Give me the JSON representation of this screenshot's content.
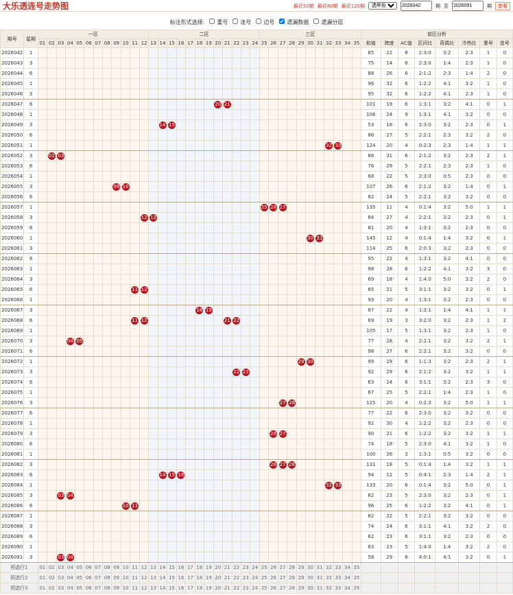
{
  "header": {
    "title": "大乐透连号走势图",
    "links": [
      "最近50期",
      "最近80期",
      "最近120期"
    ],
    "year_select": "选年份",
    "from": "2026042",
    "from_unit": "期",
    "to_label": "至",
    "to": "2026091",
    "to_unit": "期",
    "button": "查看"
  },
  "filter": {
    "label": "标注形式选择:",
    "options": [
      {
        "label": "重号",
        "checked": false
      },
      {
        "label": "连号",
        "checked": false
      },
      {
        "label": "边号",
        "checked": false
      },
      {
        "label": "遗漏数据",
        "checked": true
      },
      {
        "label": "遗漏分层",
        "checked": false
      }
    ]
  },
  "table": {
    "period_header": "期号",
    "week_header": "星期",
    "zones": [
      {
        "name": "一区",
        "count": 12
      },
      {
        "name": "二区",
        "count": 12
      },
      {
        "name": "三区",
        "count": 11
      }
    ],
    "analysis_title": "前区分析",
    "numbers": [
      "01",
      "02",
      "03",
      "04",
      "05",
      "06",
      "07",
      "08",
      "09",
      "10",
      "11",
      "12",
      "13",
      "14",
      "15",
      "16",
      "17",
      "18",
      "19",
      "20",
      "21",
      "22",
      "23",
      "24",
      "25",
      "26",
      "27",
      "28",
      "29",
      "30",
      "31",
      "32",
      "33",
      "34",
      "35"
    ],
    "analysis_headers": [
      "和值",
      "跨度",
      "AC值",
      "区间比",
      "奇偶比",
      "冷热比",
      "重号",
      "连号"
    ],
    "rows": [
      {
        "period": "2026042",
        "week": 1,
        "consecutive": [],
        "analysis": [
          65,
          22,
          8,
          "2:3:0",
          "3:2",
          "2:3",
          1,
          0
        ]
      },
      {
        "period": "2026043",
        "week": 3,
        "consecutive": [],
        "analysis": [
          75,
          14,
          6,
          "2:3:0",
          "1:4",
          "2:3",
          1,
          0
        ]
      },
      {
        "period": "2026044",
        "week": 6,
        "consecutive": [],
        "analysis": [
          88,
          26,
          6,
          "2:1:2",
          "2:3",
          "1:4",
          2,
          0
        ]
      },
      {
        "period": "2026045",
        "week": 1,
        "consecutive": [],
        "analysis": [
          96,
          32,
          6,
          "1:2:2",
          "4:1",
          "3:2",
          1,
          0
        ]
      },
      {
        "period": "2026046",
        "week": 3,
        "consecutive": [],
        "analysis": [
          95,
          32,
          6,
          "1:2:2",
          "4:1",
          "2:3",
          1,
          0
        ]
      },
      {
        "period": "2026047",
        "week": 6,
        "consecutive": [
          "20",
          "21"
        ],
        "analysis": [
          101,
          19,
          6,
          "1:3:1",
          "3:2",
          "4:1",
          0,
          1
        ]
      },
      {
        "period": "2026048",
        "week": 1,
        "consecutive": [],
        "analysis": [
          106,
          24,
          9,
          "1:3:1",
          "4:1",
          "3:2",
          0,
          0
        ]
      },
      {
        "period": "2026049",
        "week": 3,
        "consecutive": [
          "14",
          "15"
        ],
        "analysis": [
          53,
          16,
          6,
          "2:3:0",
          "3:2",
          "2:3",
          0,
          1
        ]
      },
      {
        "period": "2026050",
        "week": 6,
        "consecutive": [],
        "analysis": [
          86,
          27,
          5,
          "2:2:1",
          "2:3",
          "3:2",
          2,
          0
        ]
      },
      {
        "period": "2026051",
        "week": 1,
        "consecutive": [
          "32",
          "33"
        ],
        "analysis": [
          124,
          20,
          4,
          "0:2:3",
          "2:3",
          "1:4",
          1,
          1
        ]
      },
      {
        "period": "2026052",
        "week": 3,
        "consecutive": [
          "02",
          "03"
        ],
        "analysis": [
          86,
          31,
          6,
          "2:1:2",
          "3:2",
          "2:3",
          2,
          1
        ]
      },
      {
        "period": "2026053",
        "week": 6,
        "consecutive": [],
        "analysis": [
          76,
          29,
          5,
          "2:2:1",
          "2:3",
          "2:3",
          1,
          0
        ]
      },
      {
        "period": "2026054",
        "week": 1,
        "consecutive": [],
        "analysis": [
          68,
          22,
          5,
          "2:3:0",
          "0:5",
          "2:3",
          0,
          0
        ]
      },
      {
        "period": "2026055",
        "week": 3,
        "consecutive": [
          "09",
          "10"
        ],
        "analysis": [
          107,
          26,
          6,
          "2:1:2",
          "3:2",
          "1:4",
          0,
          1
        ]
      },
      {
        "period": "2026056",
        "week": 6,
        "consecutive": [],
        "analysis": [
          82,
          24,
          5,
          "2:2:1",
          "3:2",
          "3:2",
          0,
          0
        ]
      },
      {
        "period": "2026057",
        "week": 1,
        "consecutive": [
          "25",
          "26",
          "27"
        ],
        "analysis": [
          135,
          11,
          4,
          "0:1:4",
          "3:2",
          "5:0",
          1,
          1
        ]
      },
      {
        "period": "2026058",
        "week": 3,
        "consecutive": [
          "12",
          "13"
        ],
        "analysis": [
          84,
          27,
          4,
          "2:2:1",
          "3:2",
          "2:3",
          0,
          1
        ]
      },
      {
        "period": "2026059",
        "week": 6,
        "consecutive": [],
        "analysis": [
          81,
          20,
          4,
          "1:3:1",
          "3:2",
          "2:3",
          0,
          0
        ]
      },
      {
        "period": "2026060",
        "week": 1,
        "consecutive": [
          "30",
          "31"
        ],
        "analysis": [
          145,
          12,
          4,
          "0:1:4",
          "1:4",
          "3:2",
          0,
          1
        ]
      },
      {
        "period": "2026061",
        "week": 3,
        "consecutive": [],
        "analysis": [
          114,
          25,
          6,
          "2:0:3",
          "3:2",
          "2:3",
          0,
          0
        ]
      },
      {
        "period": "2026062",
        "week": 6,
        "consecutive": [],
        "analysis": [
          95,
          22,
          4,
          "1:3:1",
          "3:2",
          "4:1",
          0,
          0
        ]
      },
      {
        "period": "2026063",
        "week": 1,
        "consecutive": [],
        "analysis": [
          98,
          28,
          6,
          "1:2:2",
          "4:1",
          "3:2",
          3,
          0
        ]
      },
      {
        "period": "2026064",
        "week": 3,
        "consecutive": [],
        "analysis": [
          69,
          18,
          4,
          "1:4:0",
          "5:0",
          "3:2",
          2,
          0
        ]
      },
      {
        "period": "2026065",
        "week": 6,
        "consecutive": [
          "11",
          "12"
        ],
        "analysis": [
          65,
          21,
          5,
          "3:1:1",
          "3:2",
          "3:2",
          0,
          1
        ]
      },
      {
        "period": "2026066",
        "week": 1,
        "consecutive": [],
        "analysis": [
          93,
          20,
          4,
          "1:3:1",
          "3:2",
          "2:3",
          0,
          0
        ]
      },
      {
        "period": "2026067",
        "week": 3,
        "consecutive": [
          "18",
          "19"
        ],
        "analysis": [
          87,
          22,
          4,
          "1:3:1",
          "1:4",
          "4:1",
          1,
          1
        ]
      },
      {
        "period": "2026068",
        "week": 6,
        "consecutive": [
          "11",
          "12",
          "21",
          "22"
        ],
        "analysis": [
          69,
          19,
          3,
          "3:2:0",
          "3:2",
          "2:3",
          1,
          2
        ]
      },
      {
        "period": "2026069",
        "week": 1,
        "consecutive": [],
        "analysis": [
          105,
          17,
          5,
          "1:3:1",
          "3:2",
          "2:3",
          1,
          0
        ]
      },
      {
        "period": "2026070",
        "week": 3,
        "consecutive": [
          "04",
          "05"
        ],
        "analysis": [
          77,
          28,
          4,
          "2:2:1",
          "3:2",
          "3:2",
          2,
          1
        ]
      },
      {
        "period": "2026071",
        "week": 6,
        "consecutive": [],
        "analysis": [
          98,
          27,
          6,
          "2:2:1",
          "3:2",
          "3:2",
          0,
          0
        ]
      },
      {
        "period": "2026072",
        "week": 1,
        "consecutive": [
          "29",
          "30"
        ],
        "analysis": [
          99,
          29,
          6,
          "1:1:3",
          "3:2",
          "2:3",
          2,
          1
        ]
      },
      {
        "period": "2026073",
        "week": 3,
        "consecutive": [
          "22",
          "23"
        ],
        "analysis": [
          92,
          29,
          6,
          "2:1:2",
          "3:2",
          "3:2",
          1,
          1
        ]
      },
      {
        "period": "2026074",
        "week": 6,
        "consecutive": [],
        "analysis": [
          63,
          24,
          6,
          "3:1:1",
          "3:2",
          "2:3",
          3,
          0
        ]
      },
      {
        "period": "2026075",
        "week": 1,
        "consecutive": [],
        "analysis": [
          67,
          25,
          5,
          "2:2:1",
          "1:4",
          "2:3",
          1,
          0
        ]
      },
      {
        "period": "2026076",
        "week": 3,
        "consecutive": [
          "27",
          "28"
        ],
        "analysis": [
          125,
          20,
          4,
          "0:2:3",
          "3:2",
          "5:0",
          1,
          1
        ]
      },
      {
        "period": "2026077",
        "week": 6,
        "consecutive": [],
        "analysis": [
          77,
          22,
          6,
          "2:3:0",
          "3:2",
          "3:2",
          0,
          0
        ]
      },
      {
        "period": "2026078",
        "week": 1,
        "consecutive": [],
        "analysis": [
          92,
          30,
          4,
          "1:2:2",
          "3:2",
          "2:3",
          0,
          0
        ]
      },
      {
        "period": "2026079",
        "week": 3,
        "consecutive": [
          "26",
          "27"
        ],
        "analysis": [
          90,
          21,
          6,
          "1:2:2",
          "3:2",
          "3:2",
          1,
          1
        ]
      },
      {
        "period": "2026080",
        "week": 6,
        "consecutive": [],
        "analysis": [
          74,
          18,
          5,
          "2:3:0",
          "4:1",
          "3:2",
          1,
          0
        ]
      },
      {
        "period": "2026081",
        "week": 1,
        "consecutive": [],
        "analysis": [
          100,
          26,
          3,
          "1:3:1",
          "0:5",
          "3:2",
          0,
          0
        ]
      },
      {
        "period": "2026082",
        "week": 3,
        "consecutive": [
          "26",
          "27",
          "28"
        ],
        "analysis": [
          131,
          18,
          5,
          "0:1:4",
          "1:4",
          "3:2",
          1,
          1
        ]
      },
      {
        "period": "2026083",
        "week": 6,
        "consecutive": [
          "14",
          "15",
          "16"
        ],
        "analysis": [
          94,
          12,
          5,
          "0:4:1",
          "2:3",
          "1:4",
          2,
          1
        ]
      },
      {
        "period": "2026084",
        "week": 1,
        "consecutive": [
          "32",
          "33"
        ],
        "analysis": [
          133,
          20,
          6,
          "0:1:4",
          "3:2",
          "5:0",
          0,
          1
        ]
      },
      {
        "period": "2026085",
        "week": 3,
        "consecutive": [
          "03",
          "04"
        ],
        "analysis": [
          62,
          23,
          5,
          "2:3:0",
          "3:2",
          "2:3",
          0,
          1
        ]
      },
      {
        "period": "2026086",
        "week": 6,
        "consecutive": [
          "10",
          "11"
        ],
        "analysis": [
          96,
          25,
          6,
          "1:2:2",
          "3:2",
          "4:1",
          0,
          1
        ]
      },
      {
        "period": "2026087",
        "week": 1,
        "consecutive": [],
        "analysis": [
          82,
          22,
          5,
          "2:2:1",
          "3:2",
          "3:2",
          0,
          0
        ]
      },
      {
        "period": "2026088",
        "week": 3,
        "consecutive": [],
        "analysis": [
          74,
          24,
          6,
          "3:1:1",
          "4:1",
          "3:2",
          2,
          0
        ]
      },
      {
        "period": "2026089",
        "week": 6,
        "consecutive": [],
        "analysis": [
          62,
          23,
          6,
          "3:1:1",
          "3:2",
          "2:3",
          0,
          0
        ]
      },
      {
        "period": "2026090",
        "week": 1,
        "consecutive": [],
        "analysis": [
          83,
          23,
          5,
          "1:4:0",
          "1:4",
          "3:2",
          2,
          0
        ]
      },
      {
        "period": "2026091",
        "week": 3,
        "consecutive": [
          "03",
          "04"
        ],
        "analysis": [
          58,
          29,
          6,
          "4:0:1",
          "4:1",
          "3:2",
          0,
          1
        ]
      }
    ],
    "preselect": [
      "预选行1",
      "预选行2",
      "预选行3"
    ]
  }
}
